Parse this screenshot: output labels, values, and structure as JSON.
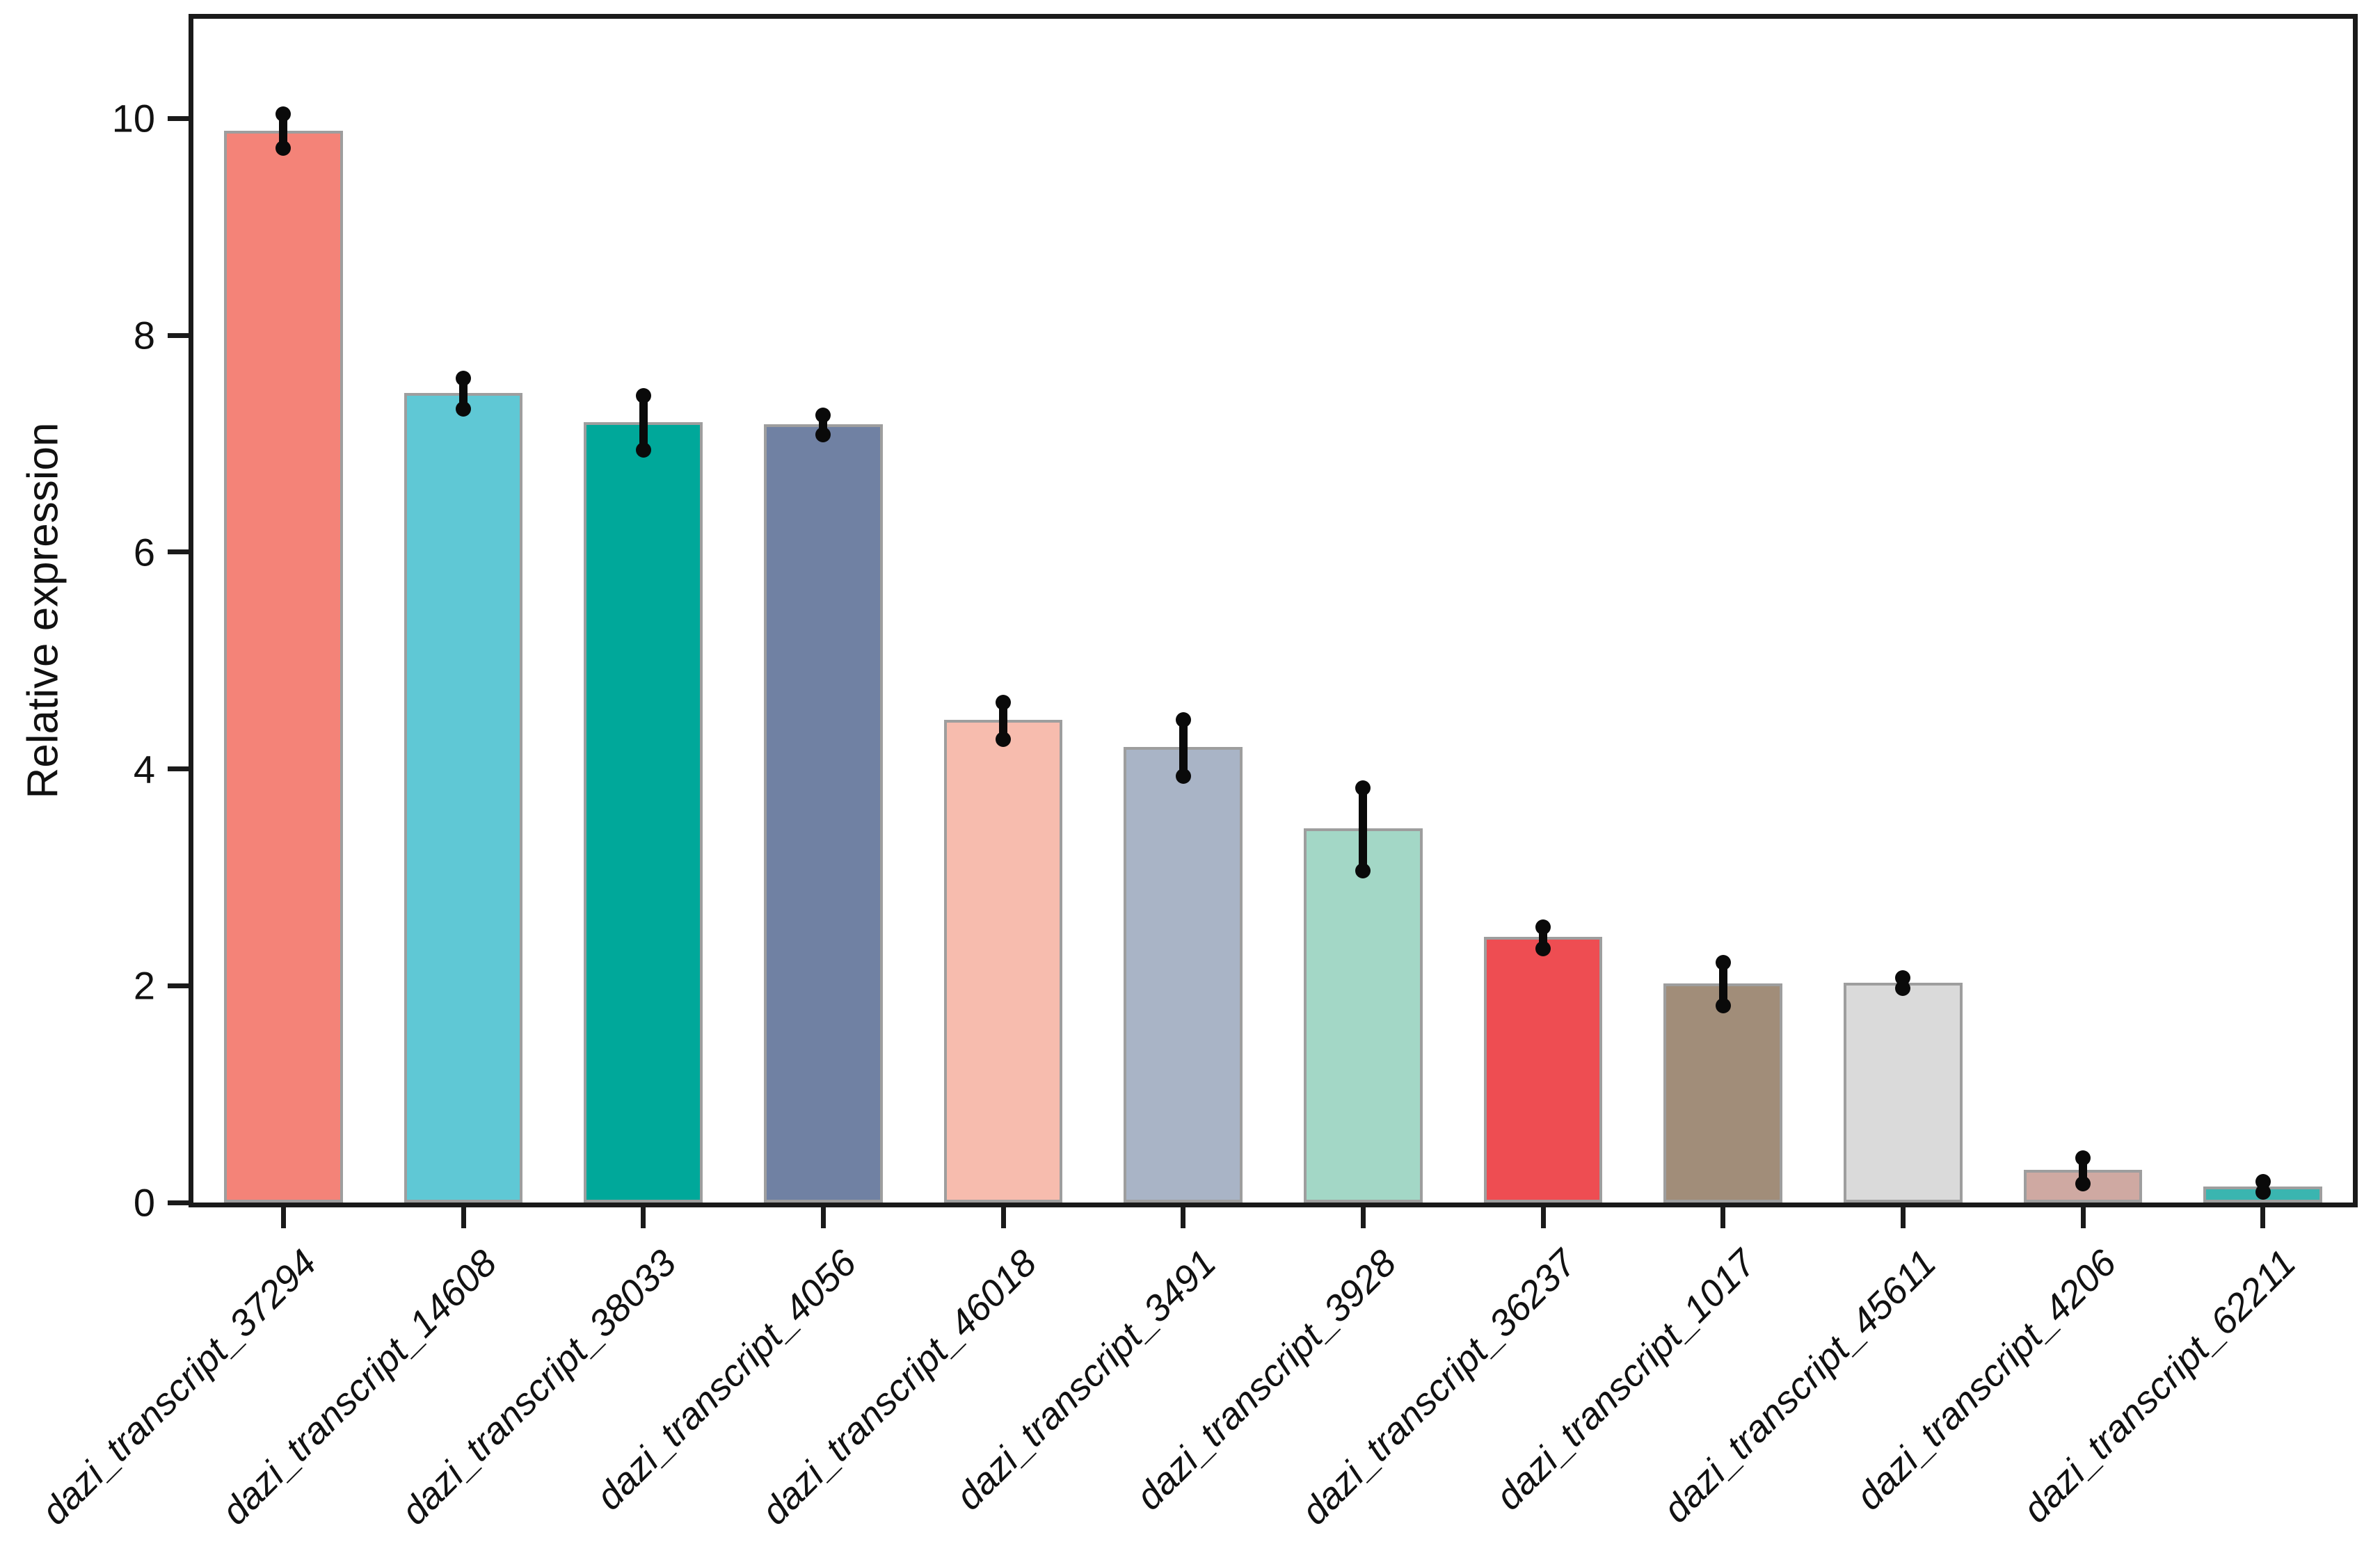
{
  "chart_data": {
    "type": "bar",
    "title": "",
    "xlabel": "",
    "ylabel": "Relative expression",
    "ylim": [
      0,
      10.92
    ],
    "yticks": [
      0,
      2,
      4,
      6,
      8,
      10
    ],
    "grid": false,
    "legend": null,
    "x_tick_label_rotation": 45,
    "categories": [
      "dazi_transcript_37294",
      "dazi_transcript_14608",
      "dazi_transcript_38033",
      "dazi_transcript_4056",
      "dazi_transcript_46018",
      "dazi_transcript_3491",
      "dazi_transcript_3928",
      "dazi_transcript_36237",
      "dazi_transcript_1017",
      "dazi_transcript_45611",
      "dazi_transcript_4206",
      "dazi_transcript_62211"
    ],
    "values": [
      9.89,
      7.47,
      7.2,
      7.18,
      4.45,
      4.2,
      3.45,
      2.45,
      2.02,
      2.03,
      0.3,
      0.15
    ],
    "errors": [
      0.16,
      0.14,
      0.25,
      0.09,
      0.17,
      0.26,
      0.38,
      0.1,
      0.2,
      0.05,
      0.12,
      0.05
    ],
    "bar_colors": [
      "#F48378",
      "#5FC8D5",
      "#00A89A",
      "#7081A3",
      "#F7BCAE",
      "#A9B4C6",
      "#A3D7C6",
      "#EE4D52",
      "#A18D79",
      "#DADADA",
      "#CFA9A2",
      "#3AB5B0"
    ],
    "bar_edge_color": "#9E9E9E",
    "error_bar_color": "#0A0A0A",
    "axis_color": "#1A1A1A"
  }
}
